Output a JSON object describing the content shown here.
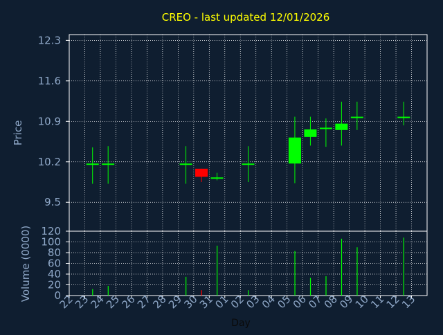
{
  "chart_data": [
    {
      "type": "candlestick",
      "title": "CREO - last updated 12/01/2026",
      "ylabel": "Price",
      "xlabel": "Day",
      "ylim": [
        9.0,
        12.4
      ],
      "y_ticks": [
        "12.3",
        "11.6",
        "10.9",
        "10.2",
        "9.5"
      ],
      "y_tick_values": [
        12.3,
        11.6,
        10.9,
        10.2,
        9.5
      ],
      "x_ticks": [
        "22",
        "23",
        "24",
        "25",
        "26",
        "27",
        "28",
        "29",
        "30",
        "31",
        "01",
        "02",
        "03",
        "04",
        "05",
        "06",
        "07",
        "08",
        "09",
        "10",
        "11",
        "12",
        "13"
      ],
      "grid": true,
      "colors": {
        "up": "#00ff00",
        "down": "#ff0000",
        "grid": "#ffffff",
        "axis": "#ffffff",
        "title": "#ffff00",
        "label": "#8fa8c8"
      },
      "candles": [
        {
          "day": "23",
          "open": 10.17,
          "high": 10.45,
          "low": 9.82,
          "close": 10.17
        },
        {
          "day": "24",
          "open": 10.17,
          "high": 10.47,
          "low": 9.82,
          "close": 10.17
        },
        {
          "day": "29",
          "open": 10.17,
          "high": 10.47,
          "low": 9.82,
          "close": 10.17
        },
        {
          "day": "30",
          "open": 10.08,
          "high": 10.08,
          "low": 9.85,
          "close": 9.94
        },
        {
          "day": "31",
          "open": 9.93,
          "high": 10.01,
          "low": 9.88,
          "close": 9.93
        },
        {
          "day": "02",
          "open": 10.17,
          "high": 10.47,
          "low": 9.85,
          "close": 10.17
        },
        {
          "day": "05",
          "open": 10.17,
          "high": 10.98,
          "low": 9.83,
          "close": 10.62
        },
        {
          "day": "06",
          "open": 10.63,
          "high": 10.98,
          "low": 10.48,
          "close": 10.76
        },
        {
          "day": "07",
          "open": 10.78,
          "high": 10.95,
          "low": 10.46,
          "close": 10.79
        },
        {
          "day": "08",
          "open": 10.75,
          "high": 11.24,
          "low": 10.48,
          "close": 10.86
        },
        {
          "day": "09",
          "open": 10.98,
          "high": 11.24,
          "low": 10.75,
          "close": 10.98
        },
        {
          "day": "12",
          "open": 10.98,
          "high": 11.24,
          "low": 10.83,
          "close": 10.98
        }
      ]
    },
    {
      "type": "bar",
      "ylabel": "Volume (0000)",
      "xlabel": "Day",
      "ylim": [
        0,
        120
      ],
      "y_ticks": [
        "120",
        "100",
        "80",
        "60",
        "40",
        "20",
        "0"
      ],
      "y_tick_values": [
        120,
        100,
        80,
        60,
        40,
        20,
        0
      ],
      "x_ticks": [
        "22",
        "23",
        "24",
        "25",
        "26",
        "27",
        "28",
        "29",
        "30",
        "31",
        "01",
        "02",
        "03",
        "04",
        "05",
        "06",
        "07",
        "08",
        "09",
        "10",
        "11",
        "12",
        "13"
      ],
      "grid": true,
      "bars": [
        {
          "day": "23",
          "value": 12,
          "color": "#00ff00"
        },
        {
          "day": "24",
          "value": 18,
          "color": "#00ff00"
        },
        {
          "day": "29",
          "value": 35,
          "color": "#00ff00"
        },
        {
          "day": "30",
          "value": 10,
          "color": "#ff0000"
        },
        {
          "day": "31",
          "value": 93,
          "color": "#00ff00"
        },
        {
          "day": "02",
          "value": 10,
          "color": "#00ff00"
        },
        {
          "day": "05",
          "value": 83,
          "color": "#00ff00"
        },
        {
          "day": "06",
          "value": 33,
          "color": "#00ff00"
        },
        {
          "day": "07",
          "value": 36,
          "color": "#00ff00"
        },
        {
          "day": "08",
          "value": 106,
          "color": "#00ff00"
        },
        {
          "day": "09",
          "value": 90,
          "color": "#00ff00"
        },
        {
          "day": "12",
          "value": 108,
          "color": "#00ff00"
        }
      ]
    }
  ]
}
